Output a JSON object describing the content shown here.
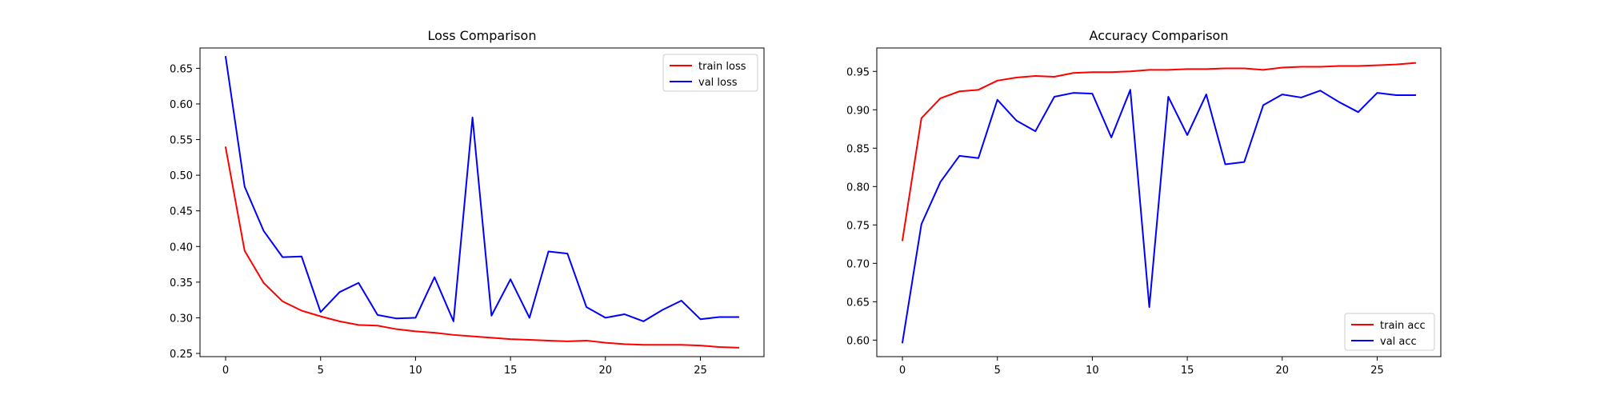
{
  "figure": {
    "background": "#ffffff"
  },
  "chart_data": [
    {
      "type": "line",
      "title": "Loss Comparison",
      "xlabel": "",
      "ylabel": "",
      "xlim": [
        -1.35,
        28.35
      ],
      "ylim": [
        0.2455,
        0.6785
      ],
      "xticks": [
        0,
        5,
        10,
        15,
        20,
        25
      ],
      "yticks": [
        0.25,
        0.3,
        0.35,
        0.4,
        0.45,
        0.5,
        0.55,
        0.6,
        0.65
      ],
      "grid": false,
      "legend": "upper right",
      "x": [
        0,
        1,
        2,
        3,
        4,
        5,
        6,
        7,
        8,
        9,
        10,
        11,
        12,
        13,
        14,
        15,
        16,
        17,
        18,
        19,
        20,
        21,
        22,
        23,
        24,
        25,
        26,
        27
      ],
      "series": [
        {
          "name": "train loss",
          "color": "#ff0000",
          "values": [
            0.539,
            0.394,
            0.349,
            0.323,
            0.31,
            0.302,
            0.295,
            0.29,
            0.289,
            0.284,
            0.281,
            0.279,
            0.276,
            0.274,
            0.272,
            0.27,
            0.269,
            0.268,
            0.267,
            0.268,
            0.265,
            0.263,
            0.262,
            0.262,
            0.262,
            0.261,
            0.259,
            0.258
          ]
        },
        {
          "name": "val loss",
          "color": "#0000ff",
          "values": [
            0.666,
            0.484,
            0.422,
            0.385,
            0.386,
            0.308,
            0.336,
            0.349,
            0.304,
            0.299,
            0.3,
            0.357,
            0.295,
            0.581,
            0.303,
            0.354,
            0.3,
            0.393,
            0.39,
            0.315,
            0.3,
            0.305,
            0.295,
            0.311,
            0.324,
            0.298,
            0.301,
            0.301
          ]
        }
      ]
    },
    {
      "type": "line",
      "title": "Accuracy Comparison",
      "xlabel": "",
      "ylabel": "",
      "xlim": [
        -1.35,
        28.35
      ],
      "ylim": [
        0.5785,
        0.9805
      ],
      "xticks": [
        0,
        5,
        10,
        15,
        20,
        25
      ],
      "yticks": [
        0.6,
        0.65,
        0.7,
        0.75,
        0.8,
        0.85,
        0.9,
        0.95
      ],
      "grid": false,
      "legend": "lower right",
      "x": [
        0,
        1,
        2,
        3,
        4,
        5,
        6,
        7,
        8,
        9,
        10,
        11,
        12,
        13,
        14,
        15,
        16,
        17,
        18,
        19,
        20,
        21,
        22,
        23,
        24,
        25,
        26,
        27
      ],
      "series": [
        {
          "name": "train acc",
          "color": "#ff0000",
          "values": [
            0.73,
            0.889,
            0.915,
            0.924,
            0.926,
            0.938,
            0.942,
            0.944,
            0.943,
            0.948,
            0.949,
            0.949,
            0.95,
            0.952,
            0.952,
            0.953,
            0.953,
            0.954,
            0.954,
            0.952,
            0.955,
            0.956,
            0.956,
            0.957,
            0.957,
            0.958,
            0.959,
            0.961
          ]
        },
        {
          "name": "val acc",
          "color": "#0000ff",
          "values": [
            0.597,
            0.751,
            0.806,
            0.84,
            0.837,
            0.913,
            0.886,
            0.872,
            0.917,
            0.922,
            0.921,
            0.864,
            0.926,
            0.643,
            0.917,
            0.867,
            0.92,
            0.829,
            0.832,
            0.906,
            0.92,
            0.916,
            0.925,
            0.91,
            0.897,
            0.922,
            0.919,
            0.919
          ]
        }
      ]
    }
  ]
}
